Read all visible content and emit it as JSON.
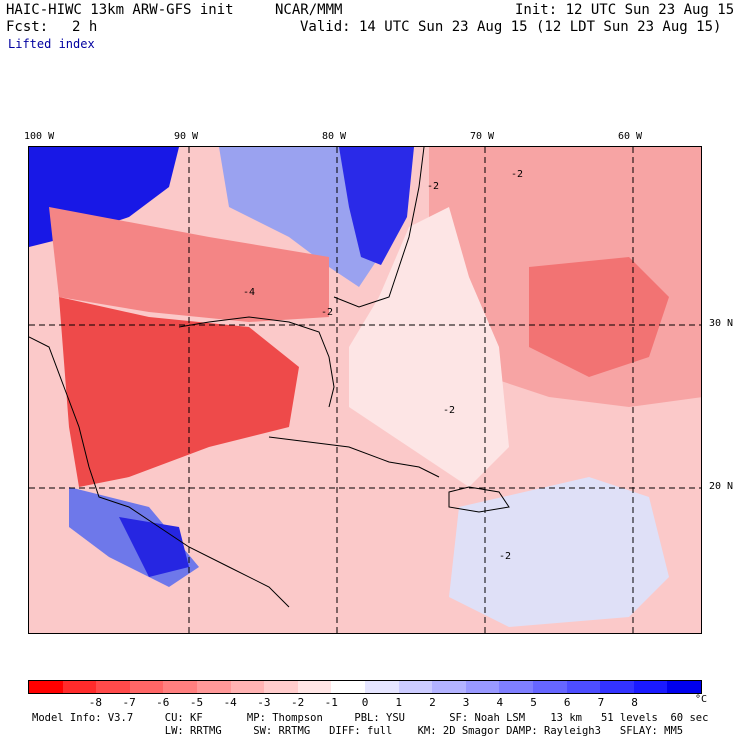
{
  "header": {
    "model": "HAIC-HIWC 13km ARW-GFS init",
    "org": "NCAR/MMM",
    "fcst_label": "Fcst:",
    "fcst_value": "2 h",
    "field": "Lifted index",
    "init": "Init: 12 UTC Sun 23 Aug 15",
    "valid": "Valid: 14 UTC Sun 23 Aug 15 (12 LDT Sun 23 Aug 15)"
  },
  "map": {
    "lon_labels": [
      "100 W",
      "90 W",
      "80 W",
      "70 W",
      "60 W"
    ],
    "lat_labels": [
      "30 N",
      "20 N"
    ],
    "contour_labels": [
      "-2",
      "-4",
      "-2",
      "-2",
      "-2",
      "-2"
    ],
    "colors": {
      "strong_negative": "#ee3333",
      "negative": "#f36b6b",
      "weak_negative": "#f9a9a9",
      "neutral": "#fde0e0",
      "weak_positive": "#d9dcf7",
      "positive": "#8f98ee",
      "strong_positive": "#1010e0"
    }
  },
  "colorbar": {
    "colors": [
      "#ff0000",
      "#ff2b2b",
      "#ff4a4a",
      "#f66",
      "#ff7f7f",
      "#ff9999",
      "#ffb3b3",
      "#ffcccc",
      "#ffe5e5",
      "#ffffff",
      "#e5e5ff",
      "#ccccff",
      "#b3b3ff",
      "#9999ff",
      "#7f7fff",
      "#6666ff",
      "#4d4dff",
      "#3333ff",
      "#1a1aff",
      "#0000ee"
    ],
    "ticks": [
      "-8",
      "-7",
      "-6",
      "-5",
      "-4",
      "-3",
      "-2",
      "-1",
      "0",
      "1",
      "2",
      "3",
      "4",
      "5",
      "6",
      "7",
      "8"
    ],
    "unit": "°C"
  },
  "model_info": {
    "line1": "Model Info: V3.7     CU: KF       MP: Thompson     PBL: YSU       SF: Noah LSM    13 km   51 levels  60 sec",
    "line2": "                     LW: RRTMG     SW: RRTMG   DIFF: full    KM: 2D Smagor DAMP: Rayleigh3   SFLAY: MM5"
  }
}
